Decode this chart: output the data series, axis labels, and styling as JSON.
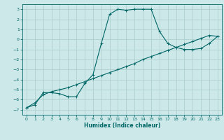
{
  "xlabel": "Humidex (Indice chaleur)",
  "ylabel": "",
  "bg_color": "#cce8e8",
  "line_color": "#006666",
  "grid_color": "#aacccc",
  "xlim": [
    -0.5,
    23.5
  ],
  "ylim": [
    -7.5,
    3.5
  ],
  "xticks": [
    0,
    1,
    2,
    3,
    4,
    5,
    6,
    7,
    8,
    9,
    10,
    11,
    12,
    13,
    14,
    15,
    16,
    17,
    18,
    19,
    20,
    21,
    22,
    23
  ],
  "yticks": [
    -7,
    -6,
    -5,
    -4,
    -3,
    -2,
    -1,
    0,
    1,
    2,
    3
  ],
  "curve1_x": [
    0,
    1,
    2,
    3,
    4,
    5,
    6,
    7,
    8,
    9,
    10,
    11,
    12,
    13,
    14,
    15,
    16,
    17,
    18,
    19,
    20,
    21,
    22,
    23
  ],
  "curve1_y": [
    -6.8,
    -6.5,
    -5.3,
    -5.3,
    -5.4,
    -5.7,
    -5.7,
    -4.4,
    -3.5,
    -0.4,
    2.5,
    3.0,
    2.9,
    3.0,
    3.0,
    3.0,
    0.8,
    -0.4,
    -0.8,
    -1.0,
    -1.0,
    -0.9,
    -0.4,
    0.3
  ],
  "curve2_x": [
    0,
    1,
    2,
    3,
    4,
    5,
    6,
    7,
    8,
    9,
    10,
    11,
    12,
    13,
    14,
    15,
    16,
    17,
    18,
    19,
    20,
    21,
    22,
    23
  ],
  "curve2_y": [
    -6.8,
    -6.3,
    -5.5,
    -5.2,
    -5.0,
    -4.8,
    -4.5,
    -4.2,
    -3.9,
    -3.6,
    -3.3,
    -3.0,
    -2.7,
    -2.4,
    -2.0,
    -1.7,
    -1.4,
    -1.1,
    -0.8,
    -0.5,
    -0.2,
    0.1,
    0.4,
    0.3
  ],
  "tick_fontsize": 4.5,
  "xlabel_fontsize": 5.5
}
